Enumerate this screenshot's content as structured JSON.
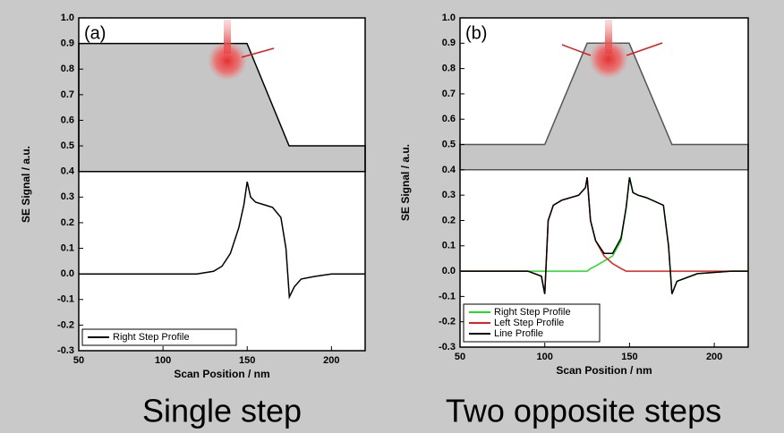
{
  "chart_data": [
    {
      "type": "line",
      "panel_label": "(a)",
      "caption": "Single step",
      "x_label": "Scan Position / nm",
      "y_label": "SE Signal / a.u.",
      "xlim": [
        50,
        220
      ],
      "ylim": [
        -0.3,
        1.0
      ],
      "xticks": [
        50,
        100,
        150,
        200
      ],
      "yticks": [
        -0.3,
        -0.2,
        -0.1,
        {
          "value": 0,
          "label": "0.0"
        },
        0.1,
        0.2,
        0.3,
        0.4,
        0.5,
        0.6,
        0.7,
        0.8,
        0.9,
        {
          "value": 1,
          "label": "1.0"
        }
      ],
      "legend": "lower left",
      "x": [
        50,
        60,
        70,
        80,
        90,
        100,
        110,
        120,
        130,
        135,
        140,
        145,
        148,
        150,
        152,
        155,
        160,
        165,
        170,
        173,
        175,
        178,
        182,
        190,
        200,
        210,
        220
      ],
      "series": [
        {
          "name": "Right Step Profile",
          "color": "#000000",
          "values": [
            0,
            0,
            0,
            0,
            0,
            0,
            0,
            0,
            0.01,
            0.03,
            0.08,
            0.18,
            0.27,
            0.36,
            0.3,
            0.28,
            0.27,
            0.26,
            0.22,
            0.1,
            -0.09,
            -0.05,
            -0.02,
            -0.01,
            0,
            0,
            0
          ]
        }
      ]
    },
    {
      "type": "line",
      "panel_label": "(b)",
      "caption": "Two opposite steps",
      "x_label": "Scan Position / nm",
      "y_label": "SE Signal / a.u.",
      "xlim": [
        50,
        220
      ],
      "ylim": [
        -0.3,
        1.0
      ],
      "xticks": [
        50,
        100,
        150,
        200
      ],
      "yticks": [
        -0.3,
        -0.2,
        -0.1,
        {
          "value": 0,
          "label": "0.0"
        },
        0.1,
        0.2,
        0.3,
        0.4,
        0.5,
        0.6,
        0.7,
        0.8,
        0.9,
        {
          "value": 1,
          "label": "1.0"
        }
      ],
      "legend": "lower left",
      "x": [
        50,
        70,
        90,
        98,
        100,
        102,
        105,
        110,
        120,
        124,
        125,
        127,
        130,
        135,
        140,
        145,
        148,
        150,
        152,
        155,
        160,
        170,
        173,
        175,
        178,
        190,
        210,
        220
      ],
      "series": [
        {
          "name": "Right Step Profile",
          "color": "#22dd22",
          "values": [
            0,
            0,
            0,
            0,
            0,
            0,
            0,
            0,
            0,
            0,
            0,
            0.01,
            0.02,
            0.04,
            0.06,
            0.12,
            0.25,
            0.37,
            0.31,
            0.3,
            0.29,
            0.26,
            0.1,
            -0.09,
            -0.04,
            -0.01,
            0,
            0
          ]
        },
        {
          "name": "Left Step Profile",
          "color": "#e02020",
          "values": [
            0,
            0,
            0,
            -0.02,
            -0.09,
            0.2,
            0.26,
            0.28,
            0.3,
            0.33,
            0.37,
            0.2,
            0.12,
            0.06,
            0.03,
            0.01,
            0,
            0,
            0,
            0,
            0,
            0,
            0,
            0,
            0,
            0,
            0,
            0
          ]
        },
        {
          "name": "Line Profile",
          "color": "#000000",
          "values": [
            0,
            0,
            0,
            -0.02,
            -0.09,
            0.2,
            0.26,
            0.28,
            0.3,
            0.33,
            0.37,
            0.2,
            0.12,
            0.07,
            0.07,
            0.13,
            0.25,
            0.37,
            0.31,
            0.3,
            0.29,
            0.26,
            0.1,
            -0.09,
            -0.04,
            -0.01,
            0,
            0
          ]
        }
      ]
    }
  ]
}
